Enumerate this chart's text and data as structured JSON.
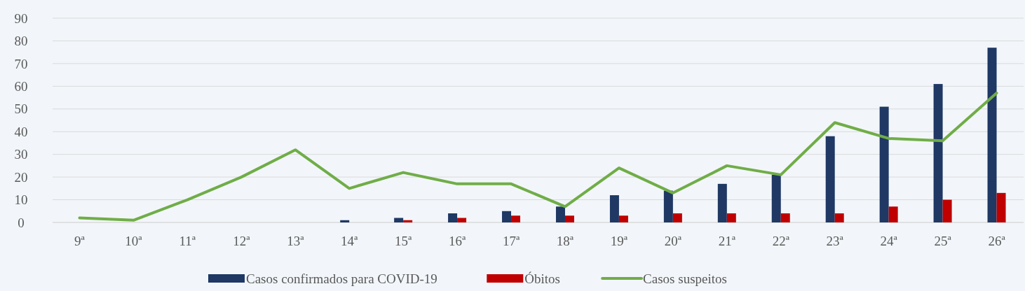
{
  "chart_data": {
    "type": "bar",
    "categories": [
      "9ª",
      "10ª",
      "11ª",
      "12ª",
      "13ª",
      "14ª",
      "15ª",
      "16ª",
      "17ª",
      "18ª",
      "19ª",
      "20ª",
      "21ª",
      "22ª",
      "23ª",
      "24ª",
      "25ª",
      "26ª"
    ],
    "series": [
      {
        "name": "Casos confirmados para COVID-19",
        "color": "#1f3864",
        "values": [
          null,
          null,
          null,
          null,
          null,
          1,
          2,
          4,
          5,
          7,
          12,
          14,
          17,
          21,
          38,
          51,
          61,
          77
        ]
      },
      {
        "name": "Óbitos",
        "color": "#c00000",
        "values": [
          null,
          null,
          null,
          null,
          null,
          null,
          1,
          2,
          3,
          3,
          3,
          4,
          4,
          4,
          4,
          7,
          10,
          13
        ]
      },
      {
        "name": "Casos suspeitos",
        "type": "line",
        "color": "#70ad47",
        "values": [
          2,
          1,
          10,
          20,
          32,
          15,
          22,
          17,
          17,
          7,
          24,
          13,
          25,
          21,
          44,
          37,
          36,
          57
        ]
      }
    ],
    "ylim": [
      0,
      90
    ],
    "yticks": [
      0,
      10,
      20,
      30,
      40,
      50,
      60,
      70,
      80,
      90
    ],
    "grid": "y",
    "legend": "bottom",
    "marker": "none",
    "line_style": "solid"
  }
}
